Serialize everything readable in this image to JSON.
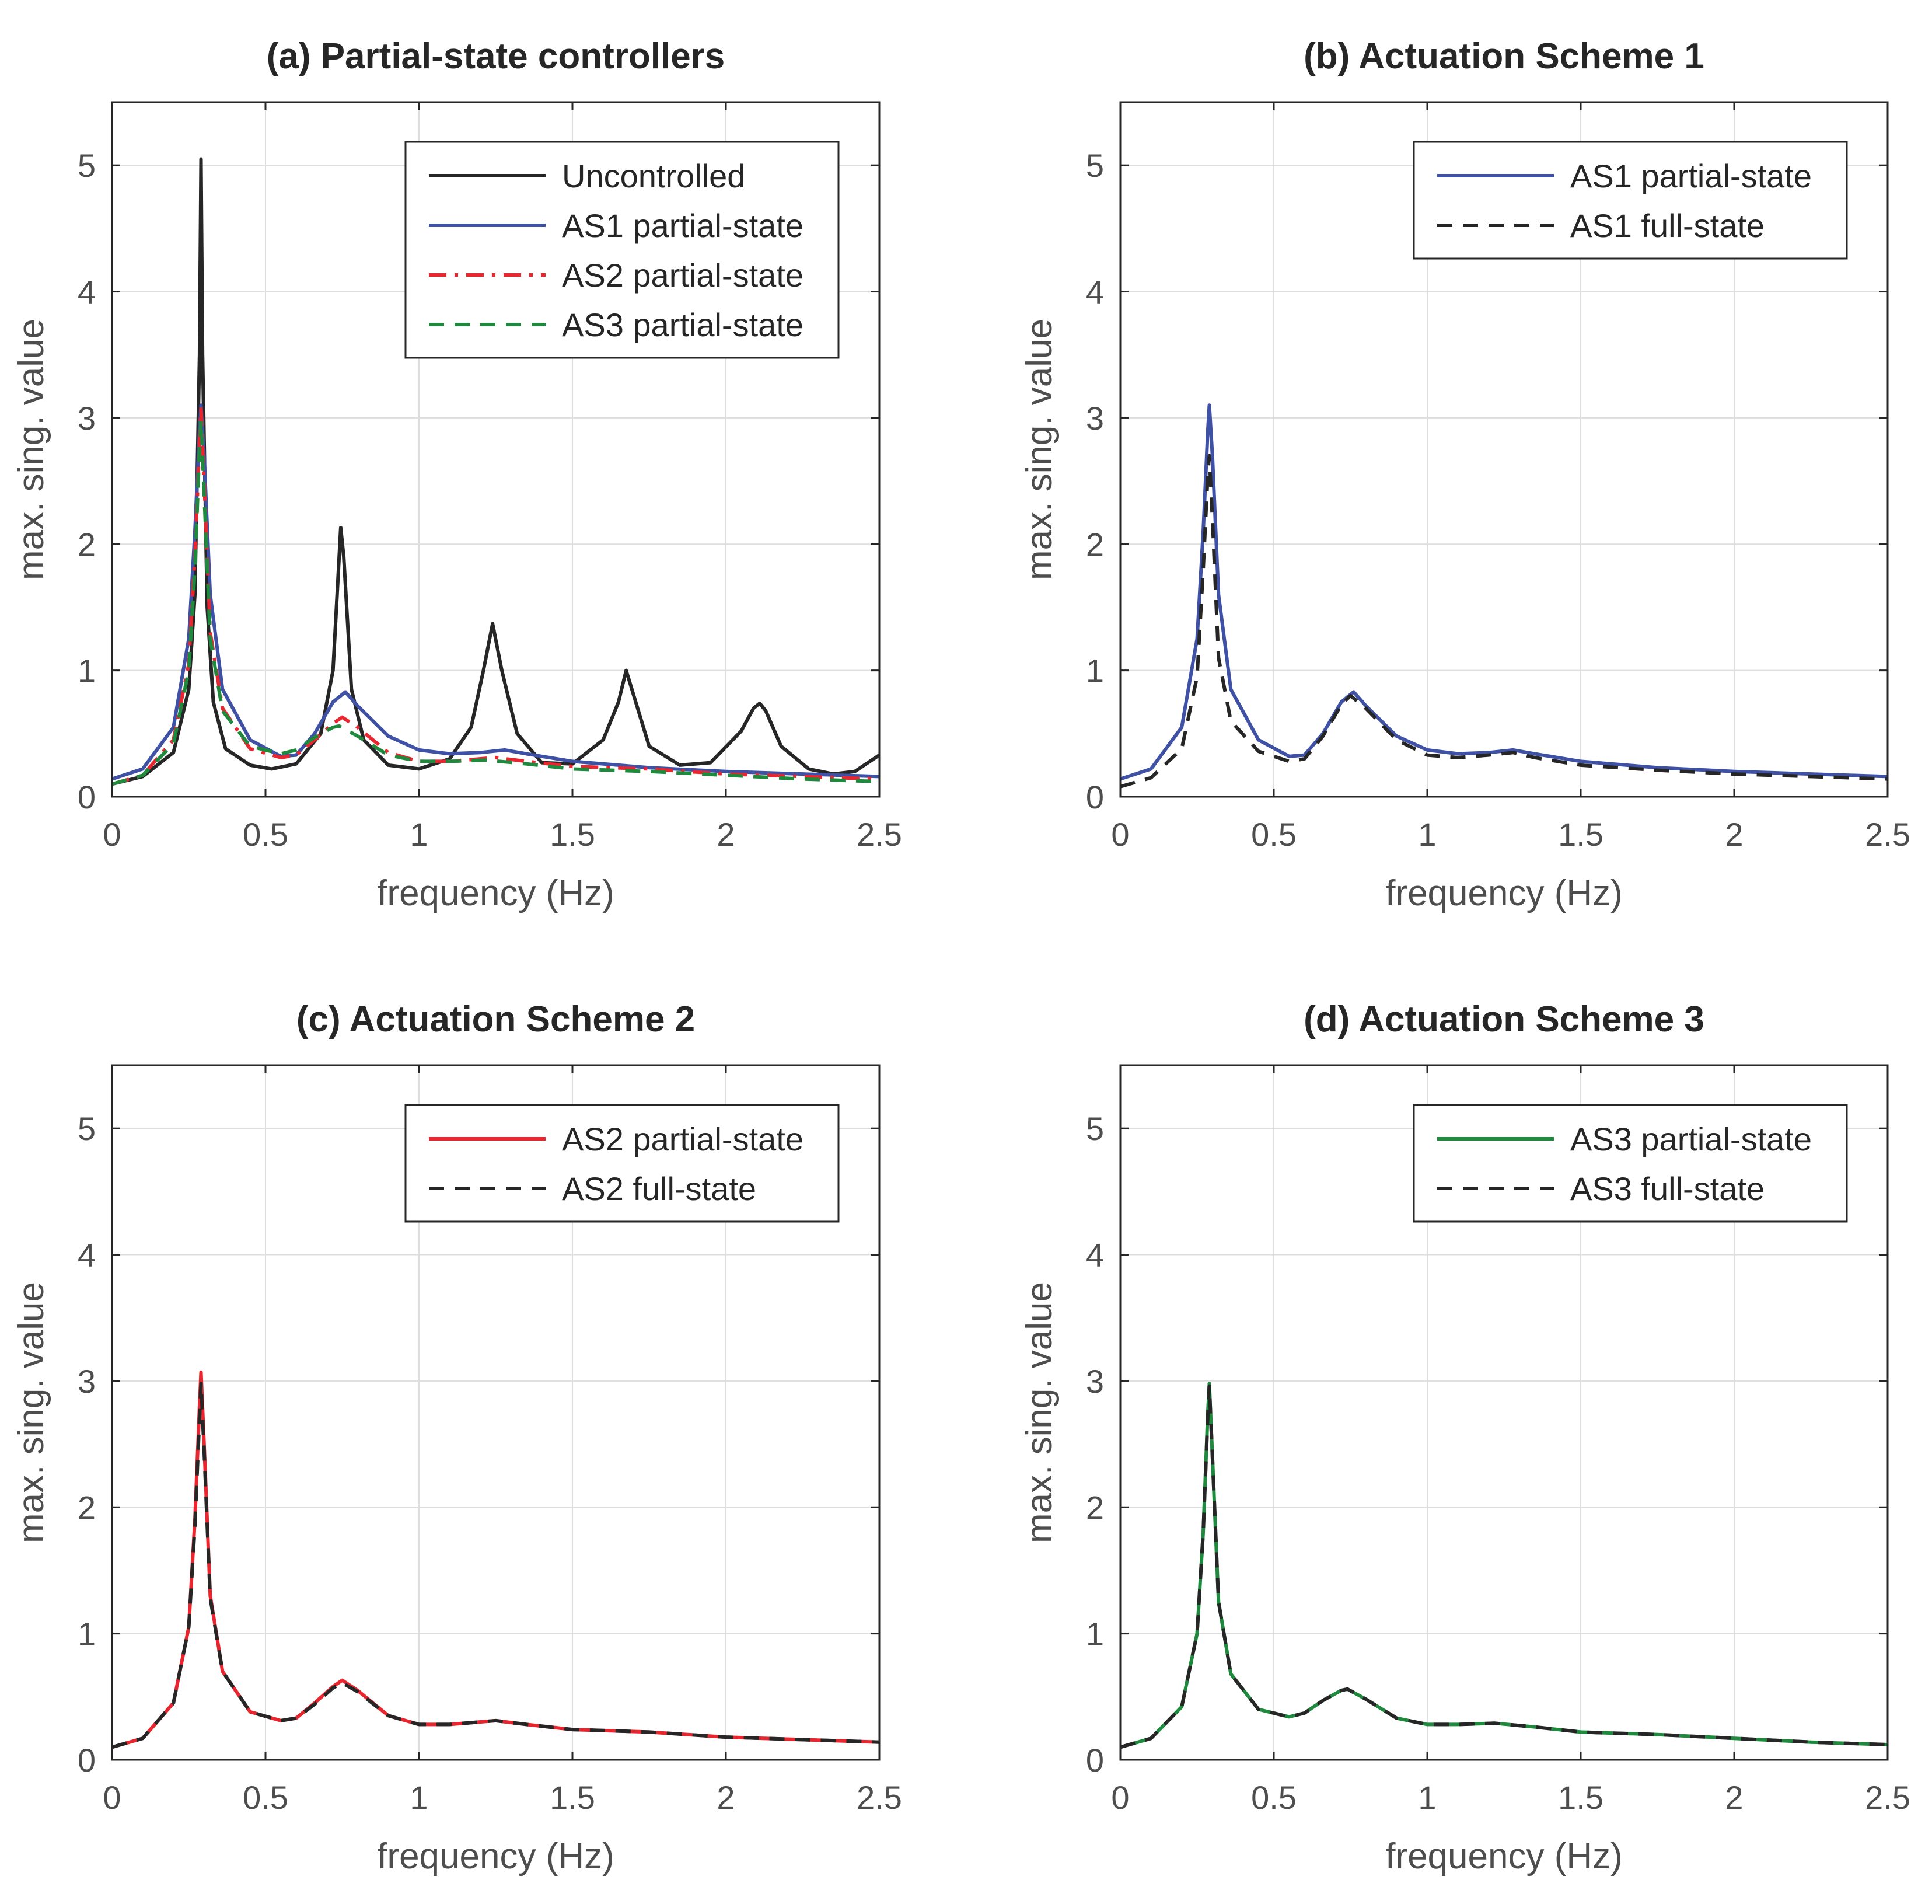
{
  "colors": {
    "uncontrolled": "#262626",
    "as1": "#3f51a4",
    "as2": "#e8262f",
    "as3": "#1f8a3e",
    "full_state": "#262626",
    "axis": "#262626",
    "tick_label": "#4d4d4d",
    "grid": "#dedede"
  },
  "chart_data": [
    {
      "id": "a",
      "type": "line",
      "title": "(a) Partial-state controllers",
      "xlabel": "frequency (Hz)",
      "ylabel": "max. sing. value",
      "xlim": [
        0,
        2.5
      ],
      "ylim": [
        0,
        5.5
      ],
      "xticks": [
        0,
        0.5,
        1,
        1.5,
        2,
        2.5
      ],
      "xtick_labels": [
        "0",
        "0.5",
        "1",
        "1.5",
        "2",
        "2.5"
      ],
      "yticks": [
        0,
        1,
        2,
        3,
        4,
        5
      ],
      "ytick_labels": [
        "0",
        "1",
        "2",
        "3",
        "4",
        "5"
      ],
      "grid": true,
      "legend_position": "top-right",
      "series": [
        {
          "name": "Uncontrolled",
          "style": "solid",
          "color_key": "uncontrolled",
          "x": [
            0,
            0.1,
            0.2,
            0.25,
            0.27,
            0.285,
            0.29,
            0.295,
            0.31,
            0.33,
            0.37,
            0.45,
            0.52,
            0.6,
            0.68,
            0.72,
            0.745,
            0.755,
            0.78,
            0.82,
            0.9,
            1.0,
            1.1,
            1.17,
            1.21,
            1.24,
            1.27,
            1.32,
            1.4,
            1.5,
            1.6,
            1.65,
            1.675,
            1.7,
            1.75,
            1.85,
            1.95,
            2.05,
            2.09,
            2.11,
            2.13,
            2.18,
            2.27,
            2.35,
            2.42,
            2.5
          ],
          "y": [
            0.1,
            0.16,
            0.35,
            0.85,
            1.6,
            3.5,
            5.05,
            3.5,
            1.5,
            0.75,
            0.38,
            0.25,
            0.22,
            0.26,
            0.5,
            1.0,
            2.13,
            1.9,
            0.85,
            0.45,
            0.25,
            0.22,
            0.3,
            0.55,
            1.0,
            1.37,
            1.0,
            0.5,
            0.27,
            0.26,
            0.45,
            0.75,
            1.0,
            0.8,
            0.4,
            0.25,
            0.27,
            0.52,
            0.7,
            0.74,
            0.68,
            0.4,
            0.22,
            0.18,
            0.2,
            0.33
          ]
        },
        {
          "name": "AS1 partial-state",
          "style": "solid",
          "color_key": "as1",
          "x": [
            0,
            0.1,
            0.2,
            0.25,
            0.27,
            0.285,
            0.29,
            0.3,
            0.32,
            0.36,
            0.45,
            0.55,
            0.6,
            0.66,
            0.72,
            0.76,
            0.8,
            0.9,
            1.0,
            1.1,
            1.2,
            1.28,
            1.35,
            1.5,
            1.75,
            2.0,
            2.25,
            2.5
          ],
          "y": [
            0.14,
            0.22,
            0.55,
            1.25,
            2.1,
            2.9,
            3.1,
            2.7,
            1.6,
            0.85,
            0.45,
            0.32,
            0.33,
            0.5,
            0.75,
            0.83,
            0.72,
            0.48,
            0.37,
            0.34,
            0.35,
            0.37,
            0.34,
            0.28,
            0.23,
            0.2,
            0.18,
            0.16
          ]
        },
        {
          "name": "AS2 partial-state",
          "style": "dashdot",
          "color_key": "as2",
          "x": [
            0,
            0.1,
            0.2,
            0.25,
            0.27,
            0.285,
            0.29,
            0.3,
            0.32,
            0.36,
            0.45,
            0.55,
            0.6,
            0.66,
            0.72,
            0.75,
            0.8,
            0.9,
            1.0,
            1.1,
            1.25,
            1.35,
            1.5,
            1.75,
            2.0,
            2.25,
            2.5
          ],
          "y": [
            0.1,
            0.17,
            0.45,
            1.05,
            1.9,
            2.8,
            3.07,
            2.5,
            1.3,
            0.7,
            0.38,
            0.31,
            0.33,
            0.45,
            0.58,
            0.63,
            0.55,
            0.35,
            0.28,
            0.28,
            0.31,
            0.28,
            0.24,
            0.22,
            0.18,
            0.16,
            0.14
          ]
        },
        {
          "name": "AS3 partial-state",
          "style": "dashed",
          "color_key": "as3",
          "x": [
            0,
            0.1,
            0.2,
            0.25,
            0.27,
            0.285,
            0.29,
            0.3,
            0.32,
            0.36,
            0.45,
            0.55,
            0.6,
            0.66,
            0.72,
            0.74,
            0.8,
            0.9,
            1.0,
            1.1,
            1.22,
            1.35,
            1.5,
            1.75,
            2.0,
            2.25,
            2.5
          ],
          "y": [
            0.1,
            0.17,
            0.42,
            1.0,
            1.8,
            2.75,
            2.98,
            2.4,
            1.25,
            0.68,
            0.4,
            0.34,
            0.37,
            0.47,
            0.55,
            0.56,
            0.48,
            0.33,
            0.28,
            0.28,
            0.29,
            0.26,
            0.22,
            0.2,
            0.17,
            0.14,
            0.12
          ]
        }
      ]
    },
    {
      "id": "b",
      "type": "line",
      "title": "(b) Actuation Scheme 1",
      "xlabel": "frequency (Hz)",
      "ylabel": "max. sing. value",
      "xlim": [
        0,
        2.5
      ],
      "ylim": [
        0,
        5.5
      ],
      "xticks": [
        0,
        0.5,
        1,
        1.5,
        2,
        2.5
      ],
      "xtick_labels": [
        "0",
        "0.5",
        "1",
        "1.5",
        "2",
        "2.5"
      ],
      "yticks": [
        0,
        1,
        2,
        3,
        4,
        5
      ],
      "ytick_labels": [
        "0",
        "1",
        "2",
        "3",
        "4",
        "5"
      ],
      "grid": true,
      "legend_position": "top-right",
      "series": [
        {
          "name": "AS1 partial-state",
          "style": "solid",
          "color_key": "as1",
          "x": [
            0,
            0.1,
            0.2,
            0.25,
            0.27,
            0.285,
            0.29,
            0.3,
            0.32,
            0.36,
            0.45,
            0.55,
            0.6,
            0.66,
            0.72,
            0.76,
            0.8,
            0.9,
            1.0,
            1.1,
            1.2,
            1.28,
            1.35,
            1.5,
            1.75,
            2.0,
            2.25,
            2.5
          ],
          "y": [
            0.14,
            0.22,
            0.55,
            1.25,
            2.1,
            2.9,
            3.1,
            2.7,
            1.6,
            0.85,
            0.45,
            0.32,
            0.33,
            0.5,
            0.75,
            0.83,
            0.72,
            0.48,
            0.37,
            0.34,
            0.35,
            0.37,
            0.34,
            0.28,
            0.23,
            0.2,
            0.18,
            0.16
          ]
        },
        {
          "name": "AS1 full-state",
          "style": "dashed",
          "color_key": "full_state",
          "x": [
            0,
            0.1,
            0.2,
            0.25,
            0.27,
            0.285,
            0.29,
            0.3,
            0.32,
            0.36,
            0.45,
            0.55,
            0.6,
            0.66,
            0.72,
            0.75,
            0.8,
            0.9,
            1.0,
            1.1,
            1.2,
            1.28,
            1.35,
            1.5,
            1.75,
            2.0,
            2.25,
            2.5
          ],
          "y": [
            0.08,
            0.15,
            0.38,
            0.95,
            1.8,
            2.55,
            2.7,
            2.2,
            1.1,
            0.6,
            0.36,
            0.28,
            0.3,
            0.48,
            0.73,
            0.8,
            0.7,
            0.45,
            0.33,
            0.31,
            0.33,
            0.35,
            0.31,
            0.25,
            0.21,
            0.18,
            0.16,
            0.14
          ]
        }
      ]
    },
    {
      "id": "c",
      "type": "line",
      "title": "(c) Actuation Scheme 2",
      "xlabel": "frequency (Hz)",
      "ylabel": "max. sing. value",
      "xlim": [
        0,
        2.5
      ],
      "ylim": [
        0,
        5.5
      ],
      "xticks": [
        0,
        0.5,
        1,
        1.5,
        2,
        2.5
      ],
      "xtick_labels": [
        "0",
        "0.5",
        "1",
        "1.5",
        "2",
        "2.5"
      ],
      "yticks": [
        0,
        1,
        2,
        3,
        4,
        5
      ],
      "ytick_labels": [
        "0",
        "1",
        "2",
        "3",
        "4",
        "5"
      ],
      "grid": true,
      "legend_position": "top-right",
      "series": [
        {
          "name": "AS2 partial-state",
          "style": "solid",
          "color_key": "as2",
          "x": [
            0,
            0.1,
            0.2,
            0.25,
            0.27,
            0.285,
            0.29,
            0.3,
            0.32,
            0.36,
            0.45,
            0.55,
            0.6,
            0.66,
            0.72,
            0.75,
            0.8,
            0.9,
            1.0,
            1.1,
            1.25,
            1.35,
            1.5,
            1.75,
            2.0,
            2.25,
            2.5
          ],
          "y": [
            0.1,
            0.17,
            0.45,
            1.05,
            1.9,
            2.8,
            3.07,
            2.5,
            1.3,
            0.7,
            0.38,
            0.31,
            0.33,
            0.45,
            0.58,
            0.63,
            0.55,
            0.35,
            0.28,
            0.28,
            0.31,
            0.28,
            0.24,
            0.22,
            0.18,
            0.16,
            0.14
          ]
        },
        {
          "name": "AS2 full-state",
          "style": "dashed",
          "color_key": "full_state",
          "x": [
            0,
            0.1,
            0.2,
            0.25,
            0.27,
            0.285,
            0.29,
            0.3,
            0.32,
            0.36,
            0.45,
            0.55,
            0.6,
            0.66,
            0.72,
            0.75,
            0.8,
            0.9,
            1.0,
            1.1,
            1.25,
            1.35,
            1.5,
            1.75,
            2.0,
            2.25,
            2.5
          ],
          "y": [
            0.1,
            0.17,
            0.45,
            1.05,
            1.85,
            2.7,
            2.98,
            2.45,
            1.28,
            0.7,
            0.38,
            0.31,
            0.33,
            0.44,
            0.57,
            0.61,
            0.54,
            0.35,
            0.28,
            0.28,
            0.31,
            0.28,
            0.24,
            0.22,
            0.18,
            0.16,
            0.14
          ]
        }
      ]
    },
    {
      "id": "d",
      "type": "line",
      "title": "(d) Actuation Scheme 3",
      "xlabel": "frequency (Hz)",
      "ylabel": "max. sing. value",
      "xlim": [
        0,
        2.5
      ],
      "ylim": [
        0,
        5.5
      ],
      "xticks": [
        0,
        0.5,
        1,
        1.5,
        2,
        2.5
      ],
      "xtick_labels": [
        "0",
        "0.5",
        "1",
        "1.5",
        "2",
        "2.5"
      ],
      "yticks": [
        0,
        1,
        2,
        3,
        4,
        5
      ],
      "ytick_labels": [
        "0",
        "1",
        "2",
        "3",
        "4",
        "5"
      ],
      "grid": true,
      "legend_position": "top-right",
      "series": [
        {
          "name": "AS3 partial-state",
          "style": "solid",
          "color_key": "as3",
          "x": [
            0,
            0.1,
            0.2,
            0.25,
            0.27,
            0.285,
            0.29,
            0.3,
            0.32,
            0.36,
            0.45,
            0.55,
            0.6,
            0.66,
            0.72,
            0.74,
            0.8,
            0.9,
            1.0,
            1.1,
            1.22,
            1.35,
            1.5,
            1.75,
            2.0,
            2.25,
            2.5
          ],
          "y": [
            0.1,
            0.17,
            0.42,
            1.0,
            1.8,
            2.75,
            2.98,
            2.4,
            1.25,
            0.68,
            0.4,
            0.34,
            0.37,
            0.47,
            0.55,
            0.56,
            0.48,
            0.33,
            0.28,
            0.28,
            0.29,
            0.26,
            0.22,
            0.2,
            0.17,
            0.14,
            0.12
          ]
        },
        {
          "name": "AS3 full-state",
          "style": "dashed",
          "color_key": "full_state",
          "x": [
            0,
            0.1,
            0.2,
            0.25,
            0.27,
            0.285,
            0.29,
            0.3,
            0.32,
            0.36,
            0.45,
            0.55,
            0.6,
            0.66,
            0.72,
            0.74,
            0.8,
            0.9,
            1.0,
            1.1,
            1.22,
            1.35,
            1.5,
            1.75,
            2.0,
            2.25,
            2.5
          ],
          "y": [
            0.1,
            0.17,
            0.42,
            1.0,
            1.8,
            2.72,
            2.96,
            2.4,
            1.25,
            0.68,
            0.4,
            0.34,
            0.37,
            0.47,
            0.55,
            0.56,
            0.48,
            0.33,
            0.28,
            0.28,
            0.29,
            0.26,
            0.22,
            0.2,
            0.17,
            0.14,
            0.12
          ]
        }
      ]
    }
  ]
}
